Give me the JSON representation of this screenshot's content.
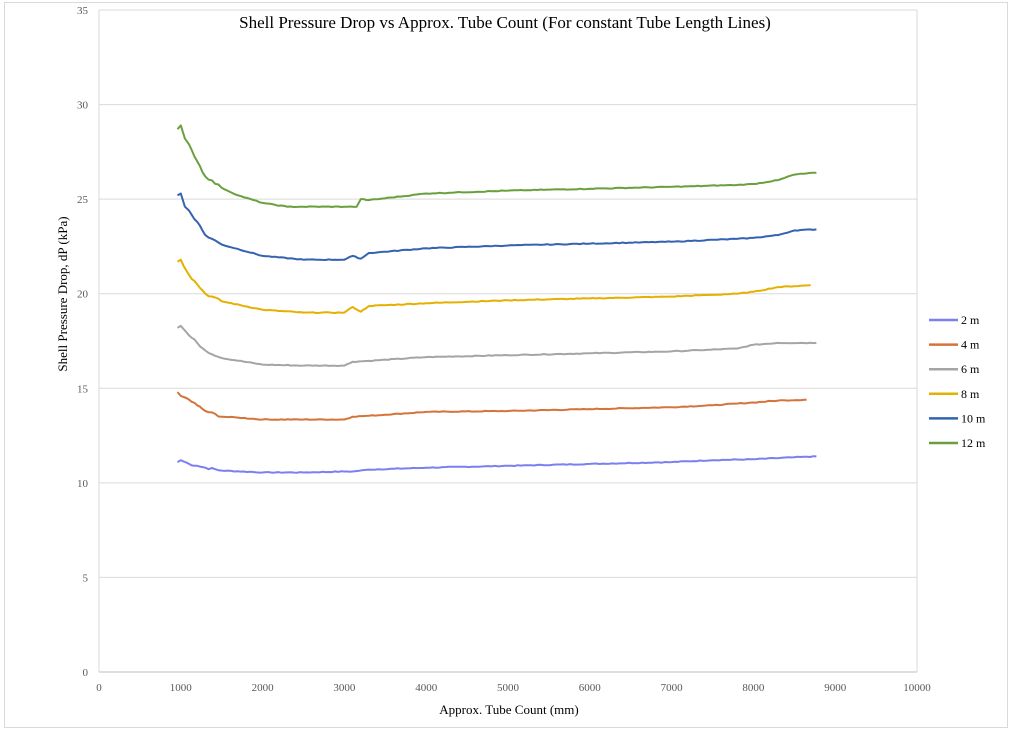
{
  "chart_data": {
    "type": "line",
    "title": "Shell Pressure Drop vs Approx. Tube Count (For constant Tube Length Lines)",
    "xlabel": "Approx. Tube Count (mm)",
    "ylabel": "Shell Pressure Drop, dP (kPa)",
    "xlim": [
      0,
      10000
    ],
    "ylim": [
      0,
      35
    ],
    "x_ticks": [
      0,
      1000,
      2000,
      3000,
      4000,
      5000,
      6000,
      7000,
      8000,
      9000,
      10000
    ],
    "y_ticks": [
      0,
      5,
      10,
      15,
      20,
      25,
      30,
      35
    ],
    "grid": "horizontal",
    "legend_position": "right",
    "series": [
      {
        "name": "2 m",
        "color": "#7B7FF0",
        "x": [
          960,
          1000,
          1100,
          1200,
          1300,
          1500,
          2000,
          2500,
          3000,
          3100,
          3300,
          4000,
          5000,
          6000,
          7000,
          7500,
          8000,
          8500,
          8770
        ],
        "y": [
          11.1,
          11.2,
          11.0,
          10.9,
          10.8,
          10.65,
          10.55,
          10.55,
          10.6,
          10.6,
          10.7,
          10.8,
          10.9,
          11.0,
          11.1,
          11.2,
          11.25,
          11.35,
          11.4
        ]
      },
      {
        "name": "4 m",
        "color": "#D4733A",
        "x": [
          960,
          1000,
          1100,
          1200,
          1300,
          1500,
          1700,
          2000,
          2500,
          3000,
          3100,
          3300,
          4000,
          5000,
          6000,
          7000,
          7500,
          8000,
          8300,
          8650
        ],
        "y": [
          14.8,
          14.6,
          14.4,
          14.1,
          13.8,
          13.5,
          13.45,
          13.35,
          13.35,
          13.35,
          13.5,
          13.55,
          13.75,
          13.8,
          13.9,
          14.0,
          14.1,
          14.25,
          14.35,
          14.4
        ]
      },
      {
        "name": "6 m",
        "color": "#A5A5A5",
        "x": [
          960,
          1000,
          1100,
          1200,
          1300,
          1500,
          2000,
          2500,
          3000,
          3100,
          3300,
          4000,
          5000,
          6000,
          7000,
          7800,
          8000,
          8300,
          8770
        ],
        "y": [
          18.2,
          18.3,
          17.8,
          17.4,
          17.0,
          16.6,
          16.25,
          16.2,
          16.2,
          16.4,
          16.45,
          16.65,
          16.75,
          16.85,
          16.95,
          17.1,
          17.3,
          17.4,
          17.4
        ]
      },
      {
        "name": "8 m",
        "color": "#E6B000",
        "x": [
          960,
          1000,
          1100,
          1200,
          1300,
          1500,
          2000,
          2500,
          3000,
          3100,
          3200,
          3300,
          4000,
          5000,
          6000,
          7000,
          7800,
          8000,
          8300,
          8700
        ],
        "y": [
          21.7,
          21.8,
          21.0,
          20.5,
          20.0,
          19.6,
          19.15,
          19.0,
          19.0,
          19.3,
          19.05,
          19.35,
          19.5,
          19.65,
          19.75,
          19.85,
          20.0,
          20.1,
          20.35,
          20.45
        ]
      },
      {
        "name": "10 m",
        "color": "#3463B0",
        "x": [
          960,
          1000,
          1050,
          1100,
          1200,
          1300,
          1500,
          2000,
          2500,
          3000,
          3100,
          3200,
          3300,
          4000,
          5000,
          6000,
          7000,
          7800,
          8000,
          8300,
          8500,
          8770
        ],
        "y": [
          25.2,
          25.3,
          24.6,
          24.4,
          23.8,
          23.1,
          22.6,
          22.0,
          21.8,
          21.8,
          22.0,
          21.85,
          22.15,
          22.4,
          22.55,
          22.65,
          22.75,
          22.9,
          22.95,
          23.1,
          23.35,
          23.4
        ]
      },
      {
        "name": "12 m",
        "color": "#6A9F3E",
        "x": [
          960,
          1000,
          1050,
          1100,
          1200,
          1300,
          1500,
          1700,
          2000,
          2300,
          2500,
          3000,
          3150,
          3200,
          3300,
          4000,
          5000,
          6000,
          7000,
          7800,
          8000,
          8300,
          8500,
          8770
        ],
        "y": [
          28.7,
          28.9,
          28.2,
          27.9,
          27.0,
          26.2,
          25.6,
          25.2,
          24.8,
          24.6,
          24.6,
          24.6,
          24.6,
          25.0,
          24.95,
          25.3,
          25.45,
          25.55,
          25.65,
          25.75,
          25.8,
          26.0,
          26.3,
          26.4
        ]
      }
    ]
  }
}
